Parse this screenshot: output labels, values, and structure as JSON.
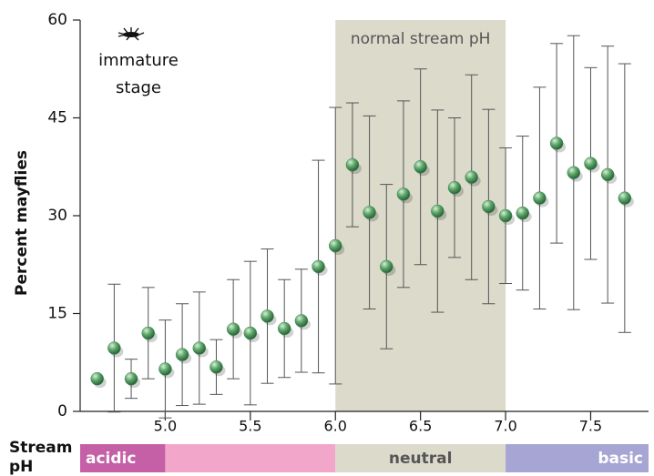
{
  "chart_data": {
    "type": "scatter",
    "ylabel": "Percent mayflies",
    "x": [
      4.6,
      4.7,
      4.8,
      4.9,
      5.0,
      5.1,
      5.2,
      5.3,
      5.4,
      5.5,
      5.6,
      5.7,
      5.8,
      5.9,
      6.0,
      6.1,
      6.2,
      6.3,
      6.4,
      6.5,
      6.6,
      6.7,
      6.8,
      6.9,
      7.0,
      7.1,
      7.2,
      7.3,
      7.4,
      7.5,
      7.6,
      7.7
    ],
    "values": [
      5,
      9.7,
      5,
      12,
      6.5,
      8.7,
      9.7,
      6.8,
      12.6,
      12,
      14.6,
      12.7,
      13.9,
      22.2,
      25.4,
      37.8,
      30.5,
      22.2,
      33.3,
      37.5,
      30.7,
      34.3,
      35.9,
      31.4,
      30,
      30.4,
      32.7,
      41.1,
      36.6,
      38,
      36.3,
      32.7
    ],
    "errors": [
      null,
      9.8,
      3,
      7,
      7.5,
      7.8,
      8.6,
      4.2,
      7.6,
      11,
      10.3,
      7.5,
      7.9,
      16.3,
      21.2,
      9.5,
      14.8,
      12.6,
      14.3,
      15,
      15.5,
      10.7,
      15.7,
      14.9,
      10.4,
      11.8,
      17,
      15.3,
      21,
      14.7,
      19.7,
      20.6
    ],
    "color": "#3d8a52",
    "xlim": [
      4.5,
      7.84
    ],
    "ylim": [
      0,
      60
    ],
    "xticks": [
      {
        "value": 5.0,
        "label": "5.0"
      },
      {
        "value": 5.5,
        "label": "5.5"
      },
      {
        "value": 6.0,
        "label": "6.0"
      },
      {
        "value": 6.5,
        "label": "6.5"
      },
      {
        "value": 7.0,
        "label": "7.0"
      },
      {
        "value": 7.5,
        "label": "7.5"
      }
    ],
    "yticks": [
      0,
      15,
      30,
      45,
      60
    ],
    "band": {
      "range": [
        6.0,
        7.0
      ],
      "label": "normal stream pH",
      "color": "#dbdacb"
    },
    "annotation": {
      "lines": [
        "immature",
        "stage"
      ]
    },
    "ph_scale": {
      "title_lines": [
        "Stream",
        "pH"
      ],
      "segments": [
        {
          "label": "acidic",
          "range": [
            4.5,
            5.0
          ],
          "color": "#c55fa6"
        },
        {
          "range": [
            5.0,
            6.0
          ],
          "color": "#f2a6c9"
        },
        {
          "label": "neutral",
          "range": [
            6.0,
            7.0
          ],
          "color": "#dbdacb"
        },
        {
          "label": "basic",
          "range": [
            7.0,
            7.84
          ],
          "color": "#a6a5d4"
        }
      ]
    }
  }
}
